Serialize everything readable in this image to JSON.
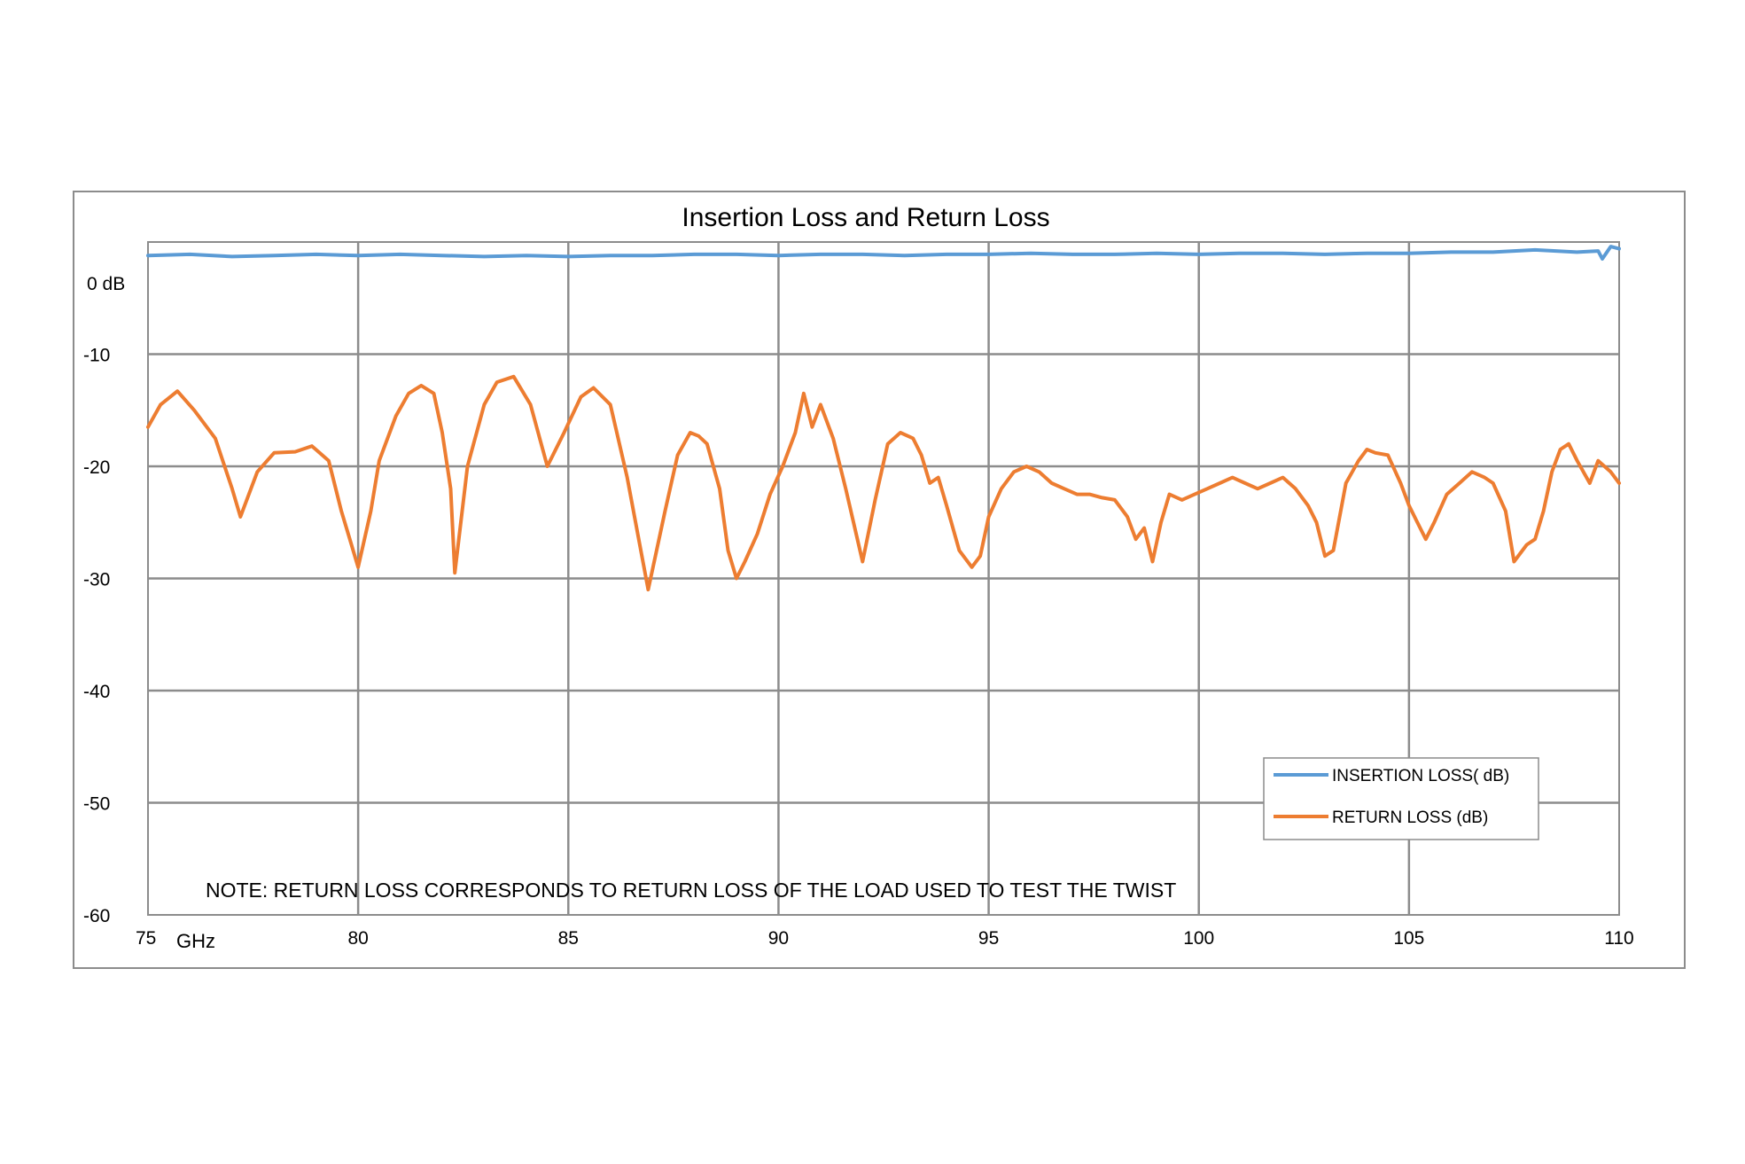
{
  "chart_data": {
    "type": "line",
    "title": "Insertion Loss and Return Loss",
    "x_unit_label": "GHz",
    "xlim": [
      75,
      110
    ],
    "ylim": [
      -60,
      0
    ],
    "x_ticks": [
      "75",
      "80",
      "85",
      "90",
      "95",
      "100",
      "105",
      "110"
    ],
    "y_ticks": [
      "0 dB",
      "-10",
      "-20",
      "-30",
      "-40",
      "-50",
      "-60"
    ],
    "grid": true,
    "legend_position": "lower-right",
    "note": "NOTE:  RETURN LOSS CORRESPONDS TO RETURN LOSS OF THE LOAD USED TO TEST THE TWIST",
    "series": [
      {
        "name": "INSERTION LOSS( dB)",
        "color": "#5b9bd5",
        "points": [
          [
            75,
            -1.2
          ],
          [
            76,
            -1.1
          ],
          [
            77,
            -1.3
          ],
          [
            78,
            -1.2
          ],
          [
            79,
            -1.1
          ],
          [
            80,
            -1.2
          ],
          [
            81,
            -1.1
          ],
          [
            82,
            -1.2
          ],
          [
            83,
            -1.3
          ],
          [
            84,
            -1.2
          ],
          [
            85,
            -1.3
          ],
          [
            86,
            -1.2
          ],
          [
            87,
            -1.2
          ],
          [
            88,
            -1.1
          ],
          [
            89,
            -1.1
          ],
          [
            90,
            -1.2
          ],
          [
            91,
            -1.1
          ],
          [
            92,
            -1.1
          ],
          [
            93,
            -1.2
          ],
          [
            94,
            -1.1
          ],
          [
            95,
            -1.1
          ],
          [
            96,
            -1.0
          ],
          [
            97,
            -1.1
          ],
          [
            98,
            -1.1
          ],
          [
            99,
            -1.0
          ],
          [
            100,
            -1.1
          ],
          [
            101,
            -1.0
          ],
          [
            102,
            -1.0
          ],
          [
            103,
            -1.1
          ],
          [
            104,
            -1.0
          ],
          [
            105,
            -1.0
          ],
          [
            106,
            -0.9
          ],
          [
            107,
            -0.9
          ],
          [
            108,
            -0.7
          ],
          [
            109,
            -0.9
          ],
          [
            109.5,
            -0.8
          ],
          [
            109.6,
            -1.5
          ],
          [
            109.8,
            -0.4
          ],
          [
            110,
            -0.6
          ]
        ]
      },
      {
        "name": "RETURN LOSS (dB)",
        "color": "#ed7d31",
        "points": [
          [
            75,
            -16.5
          ],
          [
            75.3,
            -14.5
          ],
          [
            75.7,
            -13.3
          ],
          [
            76.1,
            -15.0
          ],
          [
            76.6,
            -17.5
          ],
          [
            77.0,
            -22.0
          ],
          [
            77.2,
            -24.5
          ],
          [
            77.6,
            -20.5
          ],
          [
            78.0,
            -18.8
          ],
          [
            78.5,
            -18.7
          ],
          [
            78.9,
            -18.2
          ],
          [
            79.3,
            -19.5
          ],
          [
            79.6,
            -24.0
          ],
          [
            79.8,
            -26.5
          ],
          [
            80.0,
            -29.0
          ],
          [
            80.3,
            -24.0
          ],
          [
            80.5,
            -19.5
          ],
          [
            80.9,
            -15.5
          ],
          [
            81.2,
            -13.5
          ],
          [
            81.5,
            -12.8
          ],
          [
            81.8,
            -13.5
          ],
          [
            82.0,
            -17.0
          ],
          [
            82.2,
            -22.0
          ],
          [
            82.3,
            -29.5
          ],
          [
            82.6,
            -20.0
          ],
          [
            83.0,
            -14.5
          ],
          [
            83.3,
            -12.5
          ],
          [
            83.7,
            -12.0
          ],
          [
            84.1,
            -14.5
          ],
          [
            84.5,
            -20.0
          ],
          [
            84.9,
            -17.0
          ],
          [
            85.3,
            -13.8
          ],
          [
            85.6,
            -13.0
          ],
          [
            86.0,
            -14.5
          ],
          [
            86.4,
            -21.0
          ],
          [
            86.7,
            -27.0
          ],
          [
            86.9,
            -31.0
          ],
          [
            87.3,
            -24.0
          ],
          [
            87.6,
            -19.0
          ],
          [
            87.9,
            -17.0
          ],
          [
            88.1,
            -17.3
          ],
          [
            88.3,
            -18.0
          ],
          [
            88.6,
            -22.0
          ],
          [
            88.8,
            -27.5
          ],
          [
            89.0,
            -30.0
          ],
          [
            89.2,
            -28.5
          ],
          [
            89.5,
            -26.0
          ],
          [
            89.8,
            -22.5
          ],
          [
            90.1,
            -20.0
          ],
          [
            90.4,
            -17.0
          ],
          [
            90.6,
            -13.5
          ],
          [
            90.8,
            -16.5
          ],
          [
            91.0,
            -14.5
          ],
          [
            91.3,
            -17.5
          ],
          [
            91.6,
            -22.0
          ],
          [
            92.0,
            -28.5
          ],
          [
            92.3,
            -23.0
          ],
          [
            92.6,
            -18.0
          ],
          [
            92.9,
            -17.0
          ],
          [
            93.2,
            -17.5
          ],
          [
            93.4,
            -19.0
          ],
          [
            93.6,
            -21.5
          ],
          [
            93.8,
            -21.0
          ],
          [
            94.0,
            -23.5
          ],
          [
            94.3,
            -27.5
          ],
          [
            94.6,
            -29.0
          ],
          [
            94.8,
            -28.0
          ],
          [
            95.0,
            -24.5
          ],
          [
            95.3,
            -22.0
          ],
          [
            95.6,
            -20.5
          ],
          [
            95.9,
            -20.0
          ],
          [
            96.2,
            -20.5
          ],
          [
            96.5,
            -21.5
          ],
          [
            96.8,
            -22.0
          ],
          [
            97.1,
            -22.5
          ],
          [
            97.4,
            -22.5
          ],
          [
            97.7,
            -22.8
          ],
          [
            98.0,
            -23.0
          ],
          [
            98.3,
            -24.5
          ],
          [
            98.5,
            -26.5
          ],
          [
            98.7,
            -25.5
          ],
          [
            98.9,
            -28.5
          ],
          [
            99.1,
            -25.0
          ],
          [
            99.3,
            -22.5
          ],
          [
            99.6,
            -23.0
          ],
          [
            99.9,
            -22.5
          ],
          [
            100.2,
            -22.0
          ],
          [
            100.5,
            -21.5
          ],
          [
            100.8,
            -21.0
          ],
          [
            101.1,
            -21.5
          ],
          [
            101.4,
            -22.0
          ],
          [
            101.7,
            -21.5
          ],
          [
            102.0,
            -21.0
          ],
          [
            102.3,
            -22.0
          ],
          [
            102.6,
            -23.5
          ],
          [
            102.8,
            -25.0
          ],
          [
            103.0,
            -28.0
          ],
          [
            103.2,
            -27.5
          ],
          [
            103.5,
            -21.5
          ],
          [
            103.8,
            -19.5
          ],
          [
            104.0,
            -18.5
          ],
          [
            104.2,
            -18.8
          ],
          [
            104.5,
            -19.0
          ],
          [
            104.8,
            -21.5
          ],
          [
            105.0,
            -23.5
          ],
          [
            105.2,
            -25.0
          ],
          [
            105.4,
            -26.5
          ],
          [
            105.6,
            -25.0
          ],
          [
            105.9,
            -22.5
          ],
          [
            106.2,
            -21.5
          ],
          [
            106.5,
            -20.5
          ],
          [
            106.8,
            -21.0
          ],
          [
            107.0,
            -21.5
          ],
          [
            107.3,
            -24.0
          ],
          [
            107.5,
            -28.5
          ],
          [
            107.8,
            -27.0
          ],
          [
            108.0,
            -26.5
          ],
          [
            108.2,
            -24.0
          ],
          [
            108.4,
            -20.5
          ],
          [
            108.6,
            -18.5
          ],
          [
            108.8,
            -18.0
          ],
          [
            109.0,
            -19.5
          ],
          [
            109.3,
            -21.5
          ],
          [
            109.5,
            -19.5
          ],
          [
            109.8,
            -20.5
          ],
          [
            110.0,
            -21.5
          ]
        ]
      }
    ]
  }
}
